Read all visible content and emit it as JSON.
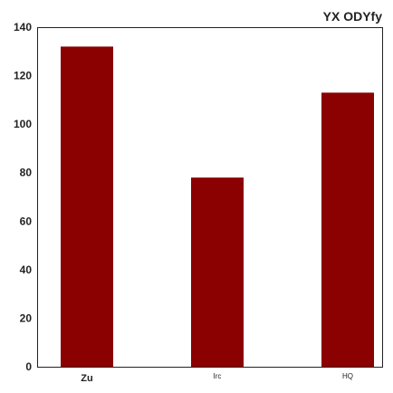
{
  "chart_data": {
    "type": "bar",
    "title": "YX ODYfy",
    "xlabel": "",
    "ylabel": "",
    "categories": [
      "Zu",
      "Irc",
      "HQ"
    ],
    "values": [
      132,
      78,
      113
    ],
    "ylim": [
      0,
      140
    ],
    "yticks": [
      "0",
      "20",
      "40",
      "60",
      "80",
      "100",
      "120",
      "140"
    ],
    "grid": false,
    "legend": "none",
    "bar_color": "#8b0000"
  }
}
